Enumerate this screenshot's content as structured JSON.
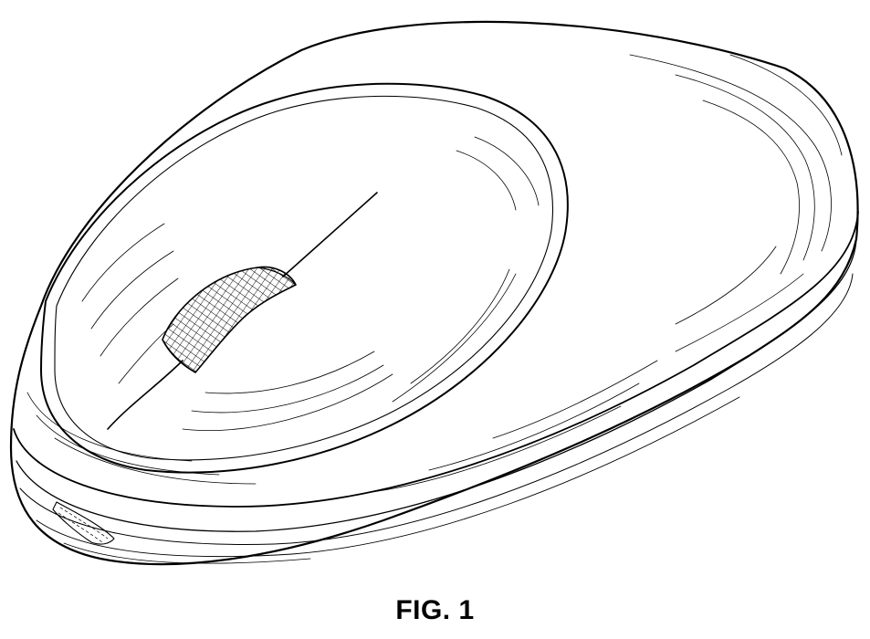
{
  "figure": {
    "caption": "FIG. 1",
    "subject": "computer-mouse",
    "line_color": "#000000",
    "background_color": "#ffffff"
  }
}
